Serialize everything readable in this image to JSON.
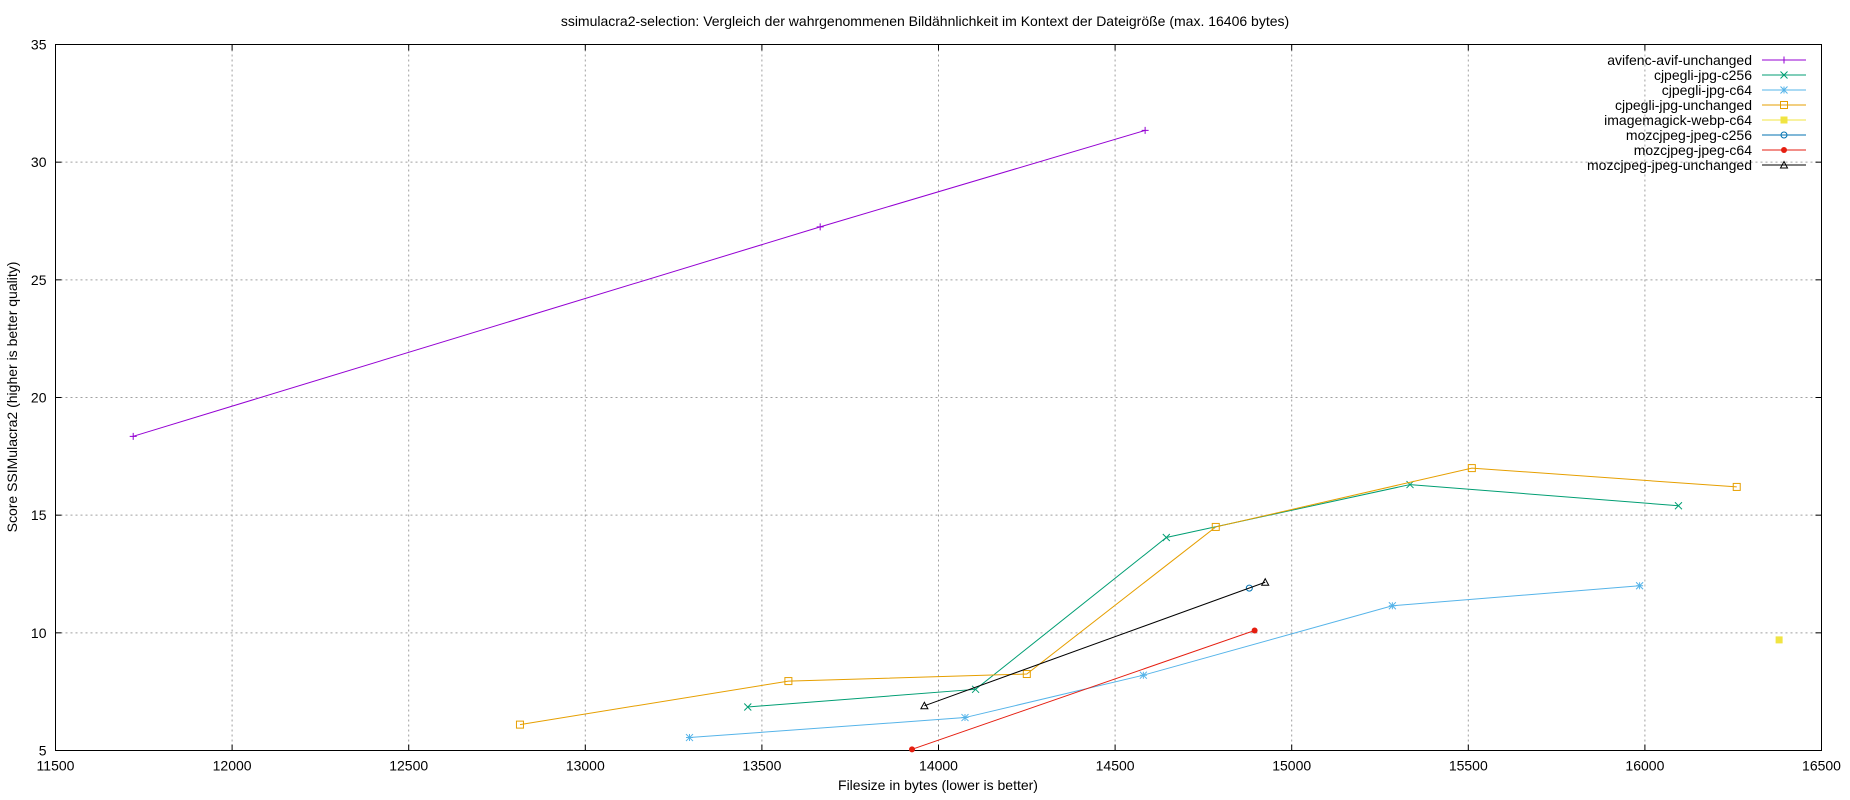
{
  "chart_data": {
    "type": "line",
    "title": "ssimulacra2-selection: Vergleich der wahrgenommenen Bildähnlichkeit im Kontext der Dateigröße (max. 16406 bytes)",
    "xlabel": "Filesize in bytes (lower is better)",
    "ylabel": "Score SSIMulacra2 (higher is better quality)",
    "xlim": [
      11500,
      16500
    ],
    "ylim": [
      5,
      35
    ],
    "xticks": [
      11500,
      12000,
      12500,
      13000,
      13500,
      14000,
      14500,
      15000,
      15500,
      16000,
      16500
    ],
    "yticks": [
      5,
      10,
      15,
      20,
      25,
      30,
      35
    ],
    "grid": true,
    "legend_position": "top-right",
    "series": [
      {
        "name": "avifenc-avif-unchanged",
        "color": "#9400d3",
        "marker": "plus",
        "x": [
          11720,
          13665,
          14585
        ],
        "y": [
          18.35,
          27.25,
          31.35
        ]
      },
      {
        "name": "cjpegli-jpg-c256",
        "color": "#009e73",
        "marker": "cross",
        "x": [
          13460,
          14105,
          14645,
          15335,
          16095
        ],
        "y": [
          6.85,
          7.6,
          14.05,
          16.3,
          15.4
        ]
      },
      {
        "name": "cjpegli-jpg-c64",
        "color": "#56b4e9",
        "marker": "star",
        "x": [
          13295,
          14075,
          14580,
          15285,
          15985
        ],
        "y": [
          5.55,
          6.4,
          8.2,
          11.15,
          12.0
        ]
      },
      {
        "name": "cjpegli-jpg-unchanged",
        "color": "#e69f00",
        "marker": "square",
        "x": [
          12815,
          13575,
          14250,
          14785,
          15510,
          16260
        ],
        "y": [
          6.1,
          7.95,
          8.25,
          14.5,
          17.0,
          16.2
        ]
      },
      {
        "name": "imagemagick-webp-c64",
        "color": "#f0e442",
        "marker": "filled-square",
        "x": [
          16380
        ],
        "y": [
          9.7
        ]
      },
      {
        "name": "mozcjpeg-jpeg-c256",
        "color": "#0072b2",
        "marker": "circle",
        "x": [
          14880
        ],
        "y": [
          11.9
        ]
      },
      {
        "name": "mozcjpeg-jpeg-c64",
        "color": "#e51e10",
        "marker": "filled-circle",
        "x": [
          13925,
          14895
        ],
        "y": [
          5.05,
          10.1
        ]
      },
      {
        "name": "mozcjpeg-jpeg-unchanged",
        "color": "#000000",
        "marker": "triangle",
        "x": [
          13960,
          14925
        ],
        "y": [
          6.9,
          12.15
        ]
      }
    ]
  }
}
